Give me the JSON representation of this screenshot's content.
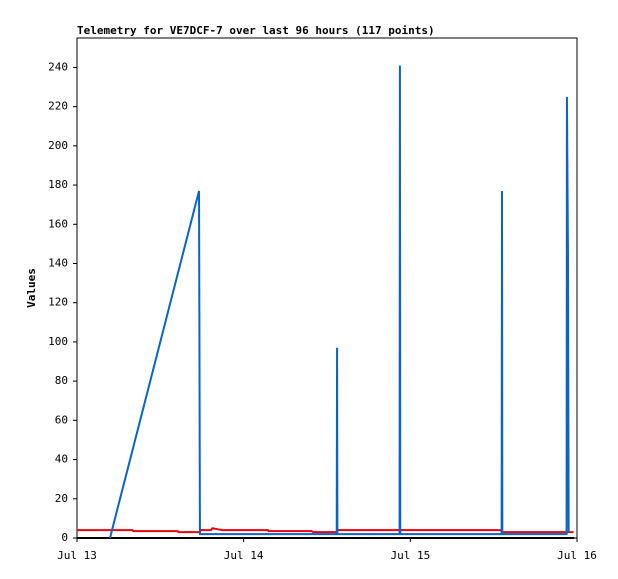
{
  "chart_data": {
    "type": "line",
    "title": "Telemetry for VE7DCF-7 over last 96 hours (117 points)",
    "y_label": "Values",
    "xlim": [
      0,
      72
    ],
    "xticks": [
      {
        "value": 0,
        "label": "Jul 13"
      },
      {
        "value": 24,
        "label": "Jul 14"
      },
      {
        "value": 48,
        "label": "Jul 15"
      },
      {
        "value": 72,
        "label": "Jul 16"
      }
    ],
    "ylim": [
      0,
      255
    ],
    "yticks": [
      0,
      20,
      40,
      60,
      80,
      100,
      120,
      140,
      160,
      180,
      200,
      220,
      240
    ],
    "series": [
      {
        "color": "#000000",
        "x": [
          0,
          71.6
        ],
        "values": [
          0,
          0
        ]
      },
      {
        "color": "#e8000b",
        "x": [
          0,
          8,
          8.1,
          14.5,
          14.6,
          17.7,
          17.8,
          19.3,
          19.5,
          20.2,
          21,
          27.5,
          27.6,
          33.8,
          34,
          37.4,
          37.5,
          61,
          61.3,
          71.5
        ],
        "values": [
          4,
          4,
          3.5,
          3.5,
          3,
          3,
          4,
          4,
          5,
          4.5,
          4,
          4,
          3.5,
          3.5,
          3,
          3,
          4,
          4,
          3,
          3
        ]
      },
      {
        "color": "#0b63c5",
        "x": [
          4.75,
          17.57,
          17.64,
          17.7,
          37.4,
          37.45,
          37.5,
          46.45,
          46.5,
          46.55,
          61.15,
          61.2,
          61.25,
          70.5,
          70.55,
          70.7,
          70.8
        ],
        "values": [
          0,
          177,
          88,
          2,
          2,
          97,
          2,
          2,
          241,
          2,
          2,
          177,
          2,
          2,
          225,
          145,
          3
        ]
      }
    ]
  }
}
